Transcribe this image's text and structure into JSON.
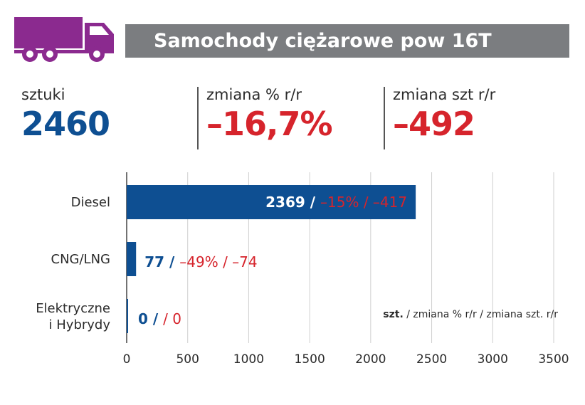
{
  "header": {
    "title": "Samochody ciężarowe pow 16T",
    "icon": "truck-icon",
    "icon_color": "#8b2a8f",
    "bar_color": "#7b7d80"
  },
  "stats": {
    "units": {
      "label": "sztuki",
      "value": "2460"
    },
    "change_pct": {
      "label": "zmiana % r/r",
      "value": "–16,7%"
    },
    "change_abs": {
      "label": "zmiana szt r/r",
      "value": "–492"
    }
  },
  "colors": {
    "primary": "#0e4f92",
    "negative": "#d6242c",
    "grid": "#cfcfcf"
  },
  "chart_data": {
    "type": "bar",
    "orientation": "horizontal",
    "categories": [
      "Diesel",
      "CNG/LNG",
      "Elektryczne i Hybrydy"
    ],
    "category_lines": [
      [
        "Diesel"
      ],
      [
        "CNG/LNG"
      ],
      [
        "Elektryczne",
        "i Hybrydy"
      ]
    ],
    "values": [
      2369,
      77,
      0
    ],
    "value_labels": [
      "2369",
      "77",
      "0"
    ],
    "change_labels": [
      "–15% / –417",
      "–49% / –74",
      " / 0"
    ],
    "xlim": [
      0,
      3500
    ],
    "xticks": [
      0,
      500,
      1000,
      1500,
      2000,
      2500,
      3000,
      3500
    ],
    "grid": true,
    "legend_bold": "szt.",
    "legend_rest": " / zmiana % r/r / zmiana szt. r/r"
  }
}
